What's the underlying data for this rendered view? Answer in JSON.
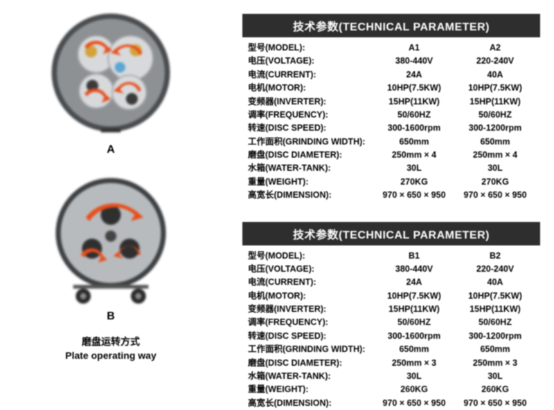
{
  "leftLabels": {
    "A": "A",
    "B": "B",
    "captionCN": "磨盘运转方式",
    "captionEN": "Plate operating way"
  },
  "tables": [
    {
      "title": "技术参数(TECHNICAL PARAMETER)",
      "rows": [
        {
          "label": "型号(MODEL):",
          "v1": "A1",
          "v2": "A2"
        },
        {
          "label": "电压(VOLTAGE):",
          "v1": "380-440V",
          "v2": "220-240V"
        },
        {
          "label": "电流(CURRENT):",
          "v1": "24A",
          "v2": "40A"
        },
        {
          "label": "电机(MOTOR):",
          "v1": "10HP(7.5KW)",
          "v2": "10HP(7.5KW)"
        },
        {
          "label": "变频器(INVERTER):",
          "v1": "15HP(11KW)",
          "v2": "15HP(11KW)"
        },
        {
          "label": "调率(FREQUENCY):",
          "v1": "50/60HZ",
          "v2": "50/60HZ"
        },
        {
          "label": "转速(DISC SPEED):",
          "v1": "300-1600rpm",
          "v2": "300-1200rpm"
        },
        {
          "label": "工作面积(GRINDING WIDTH):",
          "v1": "650mm",
          "v2": "650mm"
        },
        {
          "label": "磨盘(DISC DIAMETER):",
          "v1": "250mm × 4",
          "v2": "250mm × 4"
        },
        {
          "label": "水箱(WATER-TANK):",
          "v1": "30L",
          "v2": "30L"
        },
        {
          "label": "重量(WEIGHT):",
          "v1": "270KG",
          "v2": "270KG"
        },
        {
          "label": "高宽长(DIMENSION):",
          "v1": "970 × 650 × 950",
          "v2": "970 × 650 × 950"
        }
      ]
    },
    {
      "title": "技术参数(TECHNICAL PARAMETER)",
      "rows": [
        {
          "label": "型号(MODEL):",
          "v1": "B1",
          "v2": "B2"
        },
        {
          "label": "电压(VOLTAGE):",
          "v1": "380-440V",
          "v2": "220-240V"
        },
        {
          "label": "电流(CURRENT):",
          "v1": "24A",
          "v2": "40A"
        },
        {
          "label": "电机(MOTOR):",
          "v1": "10HP(7.5KW)",
          "v2": "10HP(7.5KW)"
        },
        {
          "label": "变频器(INVERTER):",
          "v1": "15HP(11KW)",
          "v2": "15HP(11KW)"
        },
        {
          "label": "调率(FREQUENCY):",
          "v1": "50/60HZ",
          "v2": "50/60HZ"
        },
        {
          "label": "转速(DISC SPEED):",
          "v1": "300-1600rpm",
          "v2": "300-1200rpm"
        },
        {
          "label": "工作面积(GRINDING WIDTH):",
          "v1": "650mm",
          "v2": "650mm"
        },
        {
          "label": "磨盘(DISC DIAMETER):",
          "v1": "250mm × 3",
          "v2": "250mm × 3"
        },
        {
          "label": "水箱(WATER-TANK):",
          "v1": "30L",
          "v2": "30L"
        },
        {
          "label": "重量(WEIGHT):",
          "v1": "260KG",
          "v2": "260KG"
        },
        {
          "label": "高宽长(DIMENSION):",
          "v1": "970 × 650 × 950",
          "v2": "970 × 650 × 950"
        }
      ]
    }
  ],
  "colors": {
    "headerBg": "#2e2e2e",
    "headerText": "#ffffff",
    "arrow": "#e94e1b",
    "discMetal": "#cfd2d4",
    "discDark": "#6e7174",
    "wheel": "#333333"
  }
}
